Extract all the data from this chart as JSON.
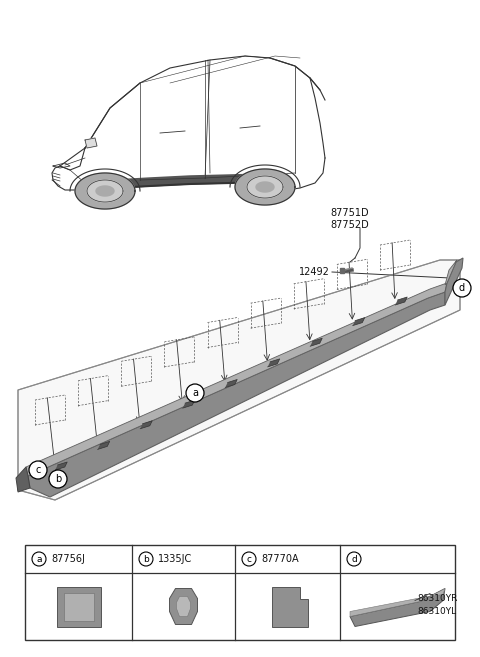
{
  "bg_color": "#ffffff",
  "line_color": "#333333",
  "part_labels": {
    "a": "87756J",
    "b": "1335JC",
    "c": "87770A",
    "d_line1": "86310YR",
    "d_line2": "86310YL"
  },
  "label_87751D": "87751D",
  "label_87752D": "87752D",
  "label_12492": "12492",
  "fig_width": 4.8,
  "fig_height": 6.57,
  "dpi": 100,
  "sill_color_face": "#8a8a8a",
  "sill_color_top": "#b0b0b0",
  "sill_color_dark": "#606060",
  "sill_color_light": "#c8c8c8",
  "box_bg": "#f8f8f8"
}
